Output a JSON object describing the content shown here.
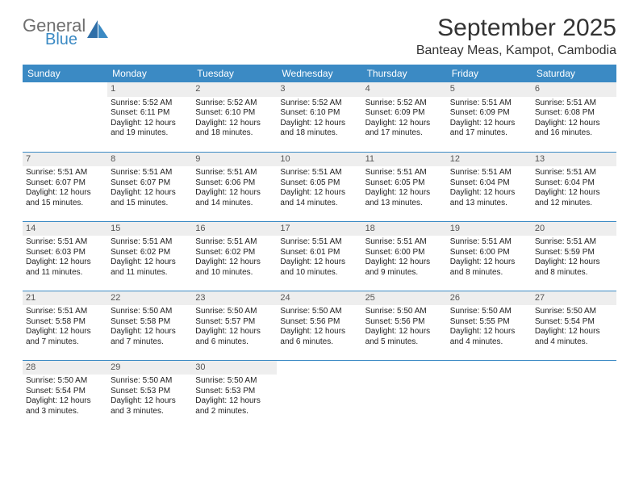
{
  "brand": {
    "line1": "General",
    "line2": "Blue"
  },
  "title": "September 2025",
  "location": "Banteay Meas, Kampot, Cambodia",
  "colors": {
    "header_bg": "#3b8ac4",
    "header_text": "#ffffff",
    "daynum_bg": "#eeeeee",
    "daynum_text": "#555555",
    "border": "#3b8ac4",
    "body_text": "#222222",
    "logo_gray": "#6f6f6f",
    "logo_blue": "#3b8ac4",
    "page_bg": "#ffffff"
  },
  "fonts": {
    "title_pt": 30,
    "location_pt": 16,
    "header_pt": 12,
    "cell_pt": 10,
    "daynum_pt": 11
  },
  "weekdays": [
    "Sunday",
    "Monday",
    "Tuesday",
    "Wednesday",
    "Thursday",
    "Friday",
    "Saturday"
  ],
  "leading_blanks": 1,
  "days": [
    {
      "n": "1",
      "sunrise": "5:52 AM",
      "sunset": "6:11 PM",
      "daylight": "12 hours and 19 minutes."
    },
    {
      "n": "2",
      "sunrise": "5:52 AM",
      "sunset": "6:10 PM",
      "daylight": "12 hours and 18 minutes."
    },
    {
      "n": "3",
      "sunrise": "5:52 AM",
      "sunset": "6:10 PM",
      "daylight": "12 hours and 18 minutes."
    },
    {
      "n": "4",
      "sunrise": "5:52 AM",
      "sunset": "6:09 PM",
      "daylight": "12 hours and 17 minutes."
    },
    {
      "n": "5",
      "sunrise": "5:51 AM",
      "sunset": "6:09 PM",
      "daylight": "12 hours and 17 minutes."
    },
    {
      "n": "6",
      "sunrise": "5:51 AM",
      "sunset": "6:08 PM",
      "daylight": "12 hours and 16 minutes."
    },
    {
      "n": "7",
      "sunrise": "5:51 AM",
      "sunset": "6:07 PM",
      "daylight": "12 hours and 15 minutes."
    },
    {
      "n": "8",
      "sunrise": "5:51 AM",
      "sunset": "6:07 PM",
      "daylight": "12 hours and 15 minutes."
    },
    {
      "n": "9",
      "sunrise": "5:51 AM",
      "sunset": "6:06 PM",
      "daylight": "12 hours and 14 minutes."
    },
    {
      "n": "10",
      "sunrise": "5:51 AM",
      "sunset": "6:05 PM",
      "daylight": "12 hours and 14 minutes."
    },
    {
      "n": "11",
      "sunrise": "5:51 AM",
      "sunset": "6:05 PM",
      "daylight": "12 hours and 13 minutes."
    },
    {
      "n": "12",
      "sunrise": "5:51 AM",
      "sunset": "6:04 PM",
      "daylight": "12 hours and 13 minutes."
    },
    {
      "n": "13",
      "sunrise": "5:51 AM",
      "sunset": "6:04 PM",
      "daylight": "12 hours and 12 minutes."
    },
    {
      "n": "14",
      "sunrise": "5:51 AM",
      "sunset": "6:03 PM",
      "daylight": "12 hours and 11 minutes."
    },
    {
      "n": "15",
      "sunrise": "5:51 AM",
      "sunset": "6:02 PM",
      "daylight": "12 hours and 11 minutes."
    },
    {
      "n": "16",
      "sunrise": "5:51 AM",
      "sunset": "6:02 PM",
      "daylight": "12 hours and 10 minutes."
    },
    {
      "n": "17",
      "sunrise": "5:51 AM",
      "sunset": "6:01 PM",
      "daylight": "12 hours and 10 minutes."
    },
    {
      "n": "18",
      "sunrise": "5:51 AM",
      "sunset": "6:00 PM",
      "daylight": "12 hours and 9 minutes."
    },
    {
      "n": "19",
      "sunrise": "5:51 AM",
      "sunset": "6:00 PM",
      "daylight": "12 hours and 8 minutes."
    },
    {
      "n": "20",
      "sunrise": "5:51 AM",
      "sunset": "5:59 PM",
      "daylight": "12 hours and 8 minutes."
    },
    {
      "n": "21",
      "sunrise": "5:51 AM",
      "sunset": "5:58 PM",
      "daylight": "12 hours and 7 minutes."
    },
    {
      "n": "22",
      "sunrise": "5:50 AM",
      "sunset": "5:58 PM",
      "daylight": "12 hours and 7 minutes."
    },
    {
      "n": "23",
      "sunrise": "5:50 AM",
      "sunset": "5:57 PM",
      "daylight": "12 hours and 6 minutes."
    },
    {
      "n": "24",
      "sunrise": "5:50 AM",
      "sunset": "5:56 PM",
      "daylight": "12 hours and 6 minutes."
    },
    {
      "n": "25",
      "sunrise": "5:50 AM",
      "sunset": "5:56 PM",
      "daylight": "12 hours and 5 minutes."
    },
    {
      "n": "26",
      "sunrise": "5:50 AM",
      "sunset": "5:55 PM",
      "daylight": "12 hours and 4 minutes."
    },
    {
      "n": "27",
      "sunrise": "5:50 AM",
      "sunset": "5:54 PM",
      "daylight": "12 hours and 4 minutes."
    },
    {
      "n": "28",
      "sunrise": "5:50 AM",
      "sunset": "5:54 PM",
      "daylight": "12 hours and 3 minutes."
    },
    {
      "n": "29",
      "sunrise": "5:50 AM",
      "sunset": "5:53 PM",
      "daylight": "12 hours and 3 minutes."
    },
    {
      "n": "30",
      "sunrise": "5:50 AM",
      "sunset": "5:53 PM",
      "daylight": "12 hours and 2 minutes."
    }
  ],
  "labels": {
    "sunrise": "Sunrise:",
    "sunset": "Sunset:",
    "daylight": "Daylight:"
  }
}
